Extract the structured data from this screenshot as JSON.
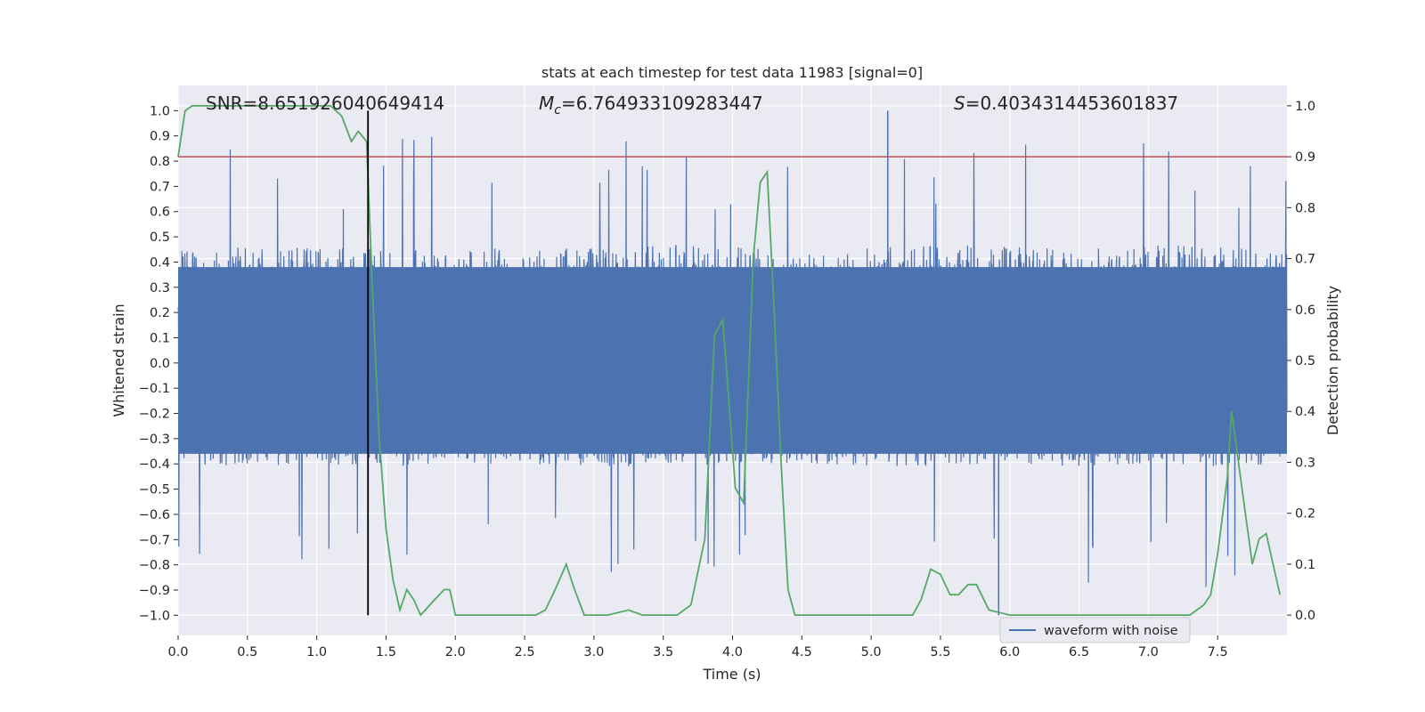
{
  "chart_data": {
    "type": "line",
    "title": "stats at each timestep for test data 11983 [signal=0]",
    "xlabel": "Time (s)",
    "ylabel_left": "Whitened strain",
    "ylabel_right": "Detection probability",
    "xlim": [
      0,
      8
    ],
    "ylim_left": [
      -1.08,
      1.1
    ],
    "ylim_right": [
      -0.04,
      1.04
    ],
    "x_ticks": [
      0.0,
      0.5,
      1.0,
      1.5,
      2.0,
      2.5,
      3.0,
      3.5,
      4.0,
      4.5,
      5.0,
      5.5,
      6.0,
      6.5,
      7.0,
      7.5
    ],
    "x_tick_labels": [
      "0.0",
      "0.5",
      "1.0",
      "1.5",
      "2.0",
      "2.5",
      "3.0",
      "3.5",
      "4.0",
      "4.5",
      "5.0",
      "5.5",
      "6.0",
      "6.5",
      "7.0",
      "7.5"
    ],
    "y_left_ticks": [
      -1.0,
      -0.9,
      -0.8,
      -0.7,
      -0.6,
      -0.5,
      -0.4,
      -0.3,
      -0.2,
      -0.1,
      0.0,
      0.1,
      0.2,
      0.3,
      0.4,
      0.5,
      0.6,
      0.7,
      0.8,
      0.9,
      1.0
    ],
    "y_left_tick_labels": [
      "−1.0",
      "−0.9",
      "−0.8",
      "−0.7",
      "−0.6",
      "−0.5",
      "−0.4",
      "−0.3",
      "−0.2",
      "−0.1",
      "0.0",
      "0.1",
      "0.2",
      "0.3",
      "0.4",
      "0.5",
      "0.6",
      "0.7",
      "0.8",
      "0.9",
      "1.0"
    ],
    "y_right_ticks": [
      0.0,
      0.1,
      0.2,
      0.3,
      0.4,
      0.5,
      0.6,
      0.7,
      0.8,
      0.9,
      1.0
    ],
    "y_right_tick_labels": [
      "0.0",
      "0.1",
      "0.2",
      "0.3",
      "0.4",
      "0.5",
      "0.6",
      "0.7",
      "0.8",
      "0.9",
      "1.0"
    ],
    "grid": true,
    "legend": {
      "placement": "bottom-right",
      "entries": [
        "waveform with noise"
      ]
    },
    "annotations": {
      "snr": "SNR=8.651926040649414",
      "mc_symbol": "M",
      "mc_subscript": "c",
      "mc_value": "=6.764933109283447",
      "s_symbol": "S",
      "s_value": "=0.4034314453601837"
    },
    "threshold_line": {
      "axis": "right",
      "y": 0.9,
      "color": "#c44e52"
    },
    "marker_line": {
      "x": 1.37,
      "y_range": [
        -1.0,
        1.0
      ],
      "color": "#000000"
    },
    "series": [
      {
        "name": "waveform with noise",
        "axis": "left",
        "color": "#4c72b0",
        "envelope": {
          "t": [
            0.0,
            0.5,
            1.0,
            1.5,
            2.0,
            2.5,
            3.0,
            3.5,
            4.0,
            4.5,
            5.0,
            5.5,
            6.0,
            6.5,
            7.0,
            7.5,
            8.0
          ],
          "upper": [
            0.45,
            0.47,
            0.46,
            0.45,
            0.45,
            0.46,
            0.46,
            0.47,
            0.46,
            0.45,
            0.46,
            0.47,
            0.46,
            0.46,
            0.47,
            0.46,
            0.45
          ],
          "lower": [
            -0.4,
            -0.41,
            -0.4,
            -0.41,
            -0.4,
            -0.4,
            -0.41,
            -0.41,
            -0.4,
            -0.4,
            -0.41,
            -0.41,
            -0.4,
            -0.41,
            -0.4,
            -0.41,
            -0.4
          ],
          "max_peak": 1.0,
          "min_peak": -1.0
        }
      },
      {
        "axis": "right",
        "color": "#55a868",
        "x": [
          0.0,
          0.05,
          0.1,
          0.15,
          0.2,
          0.3,
          0.4,
          0.5,
          0.6,
          0.7,
          0.8,
          0.9,
          1.0,
          1.1,
          1.18,
          1.25,
          1.3,
          1.36,
          1.4,
          1.45,
          1.5,
          1.55,
          1.6,
          1.65,
          1.7,
          1.75,
          1.85,
          1.92,
          1.96,
          2.0,
          2.1,
          2.2,
          2.4,
          2.5,
          2.58,
          2.65,
          2.72,
          2.8,
          2.86,
          2.93,
          3.0,
          3.1,
          3.25,
          3.35,
          3.5,
          3.6,
          3.7,
          3.8,
          3.87,
          3.93,
          4.02,
          4.08,
          4.15,
          4.2,
          4.25,
          4.3,
          4.35,
          4.4,
          4.45,
          4.5,
          4.6,
          5.0,
          5.3,
          5.36,
          5.43,
          5.5,
          5.57,
          5.63,
          5.7,
          5.76,
          5.85,
          6.0,
          6.3,
          6.5,
          7.0,
          7.2,
          7.3,
          7.35,
          7.4,
          7.45,
          7.5,
          7.57,
          7.6,
          7.65,
          7.7,
          7.75,
          7.8,
          7.85,
          7.9,
          7.95
        ],
        "values": [
          0.9,
          0.99,
          1.0,
          1.0,
          1.0,
          1.0,
          1.0,
          1.0,
          1.0,
          1.0,
          1.0,
          1.0,
          1.0,
          1.0,
          0.98,
          0.93,
          0.95,
          0.93,
          0.65,
          0.35,
          0.17,
          0.07,
          0.01,
          0.05,
          0.03,
          0.0,
          0.03,
          0.05,
          0.05,
          0.0,
          0.0,
          0.0,
          0.0,
          0.0,
          0.0,
          0.01,
          0.05,
          0.1,
          0.05,
          0.0,
          0.0,
          0.0,
          0.01,
          0.0,
          0.0,
          0.0,
          0.02,
          0.15,
          0.55,
          0.58,
          0.25,
          0.22,
          0.7,
          0.85,
          0.87,
          0.6,
          0.3,
          0.05,
          0.0,
          0.0,
          0.0,
          0.0,
          0.0,
          0.03,
          0.09,
          0.08,
          0.04,
          0.04,
          0.06,
          0.06,
          0.01,
          0.0,
          0.0,
          0.0,
          0.0,
          0.0,
          0.0,
          0.01,
          0.02,
          0.04,
          0.12,
          0.27,
          0.4,
          0.3,
          0.2,
          0.1,
          0.15,
          0.16,
          0.1,
          0.04
        ]
      }
    ]
  }
}
